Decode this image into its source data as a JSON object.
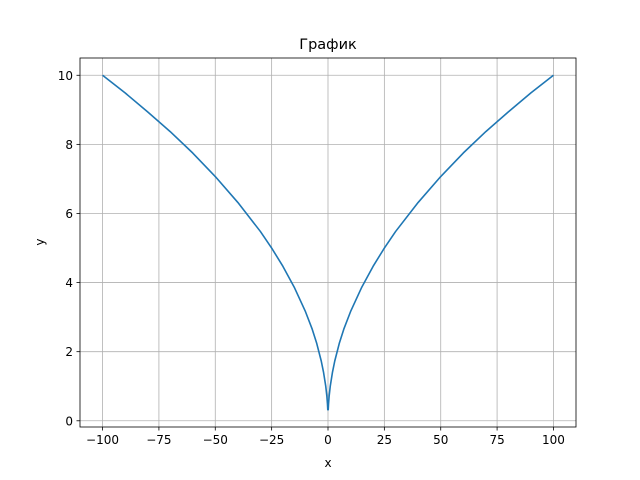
{
  "chart_data": {
    "type": "line",
    "title": "График",
    "xlabel": "x",
    "ylabel": "y",
    "xlim": [
      -110,
      110
    ],
    "ylim": [
      -0.18,
      10.5
    ],
    "grid": true,
    "x_ticks": [
      -100,
      -75,
      -50,
      -25,
      0,
      25,
      50,
      75,
      100
    ],
    "x_tick_labels": [
      "−100",
      "−75",
      "−50",
      "−25",
      "0",
      "25",
      "50",
      "75",
      "100"
    ],
    "y_ticks": [
      0,
      2,
      4,
      6,
      8,
      10
    ],
    "y_tick_labels": [
      "0",
      "2",
      "4",
      "6",
      "8",
      "10"
    ],
    "series": [
      {
        "color": "#1f77b4",
        "x": [
          -100,
          -90,
          -80,
          -70,
          -60,
          -50,
          -40,
          -30,
          -25,
          -20,
          -15,
          -10,
          -7,
          -5,
          -3,
          -2,
          -1,
          -0.5,
          -0.25,
          -0.1,
          0.1,
          0.25,
          0.5,
          1,
          2,
          3,
          5,
          7,
          10,
          15,
          20,
          25,
          30,
          40,
          50,
          60,
          70,
          80,
          90,
          100
        ],
        "y": [
          10,
          9.49,
          8.94,
          8.37,
          7.75,
          7.07,
          6.32,
          5.48,
          5,
          4.47,
          3.87,
          3.16,
          2.65,
          2.24,
          1.73,
          1.41,
          1,
          0.71,
          0.5,
          0.32,
          0.32,
          0.5,
          0.71,
          1,
          1.41,
          1.73,
          2.24,
          2.65,
          3.16,
          3.87,
          4.47,
          5,
          5.48,
          6.32,
          7.07,
          7.75,
          8.37,
          8.94,
          9.49,
          10
        ]
      }
    ]
  }
}
